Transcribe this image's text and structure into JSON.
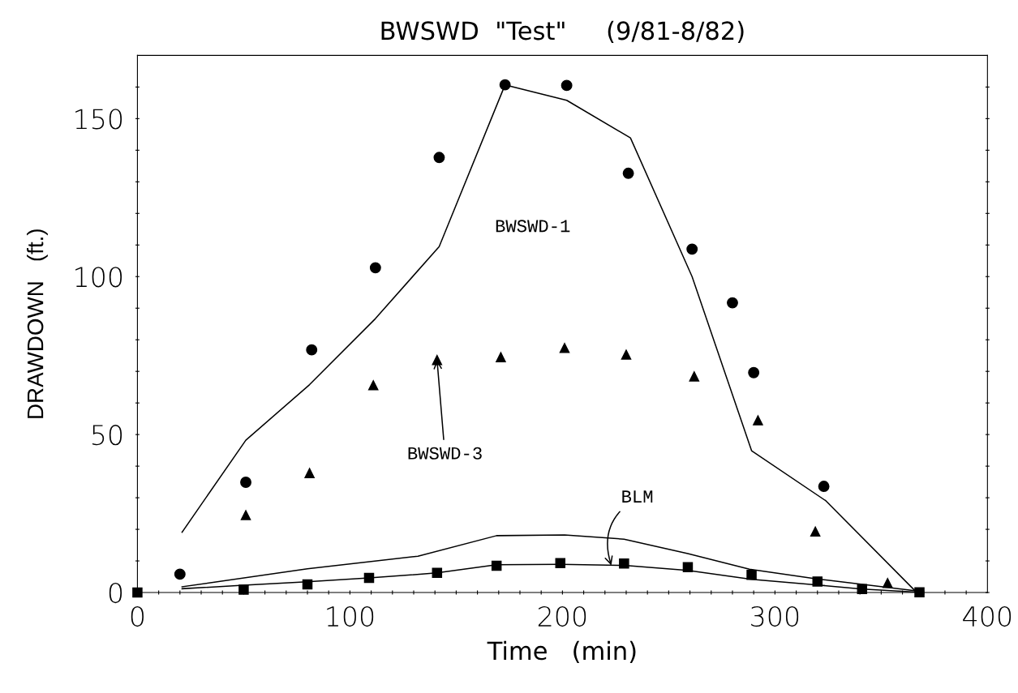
{
  "chart_data": {
    "type": "scatter",
    "title": "BWSWD  \"Test\"     (9/81-8/82)",
    "xlabel": "Time   (min)",
    "ylabel": "DRAWDOWN   (ft.)",
    "xlim": [
      0,
      400
    ],
    "ylim": [
      0,
      170
    ],
    "xticks": [
      0,
      {
        "value": 10,
        "label": null
      },
      {
        "value": 20,
        "label": null
      },
      {
        "value": 30,
        "label": null
      },
      {
        "value": 40,
        "label": null
      },
      {
        "value": 50,
        "label": null
      },
      {
        "value": 60,
        "label": null
      },
      {
        "value": 70,
        "label": null
      },
      {
        "value": 80,
        "label": null
      },
      {
        "value": 90,
        "label": null
      },
      100,
      {
        "value": 110,
        "label": null
      },
      {
        "value": 120,
        "label": null
      },
      {
        "value": 130,
        "label": null
      },
      {
        "value": 140,
        "label": null
      },
      {
        "value": 150,
        "label": null
      },
      {
        "value": 160,
        "label": null
      },
      {
        "value": 170,
        "label": null
      },
      {
        "value": 180,
        "label": null
      },
      {
        "value": 190,
        "label": null
      },
      200,
      {
        "value": 210,
        "label": null
      },
      {
        "value": 220,
        "label": null
      },
      {
        "value": 230,
        "label": null
      },
      {
        "value": 240,
        "label": null
      },
      {
        "value": 250,
        "label": null
      },
      {
        "value": 260,
        "label": null
      },
      {
        "value": 270,
        "label": null
      },
      {
        "value": 280,
        "label": null
      },
      {
        "value": 290,
        "label": null
      },
      300,
      {
        "value": 310,
        "label": null
      },
      {
        "value": 320,
        "label": null
      },
      {
        "value": 330,
        "label": null
      },
      {
        "value": 340,
        "label": null
      },
      {
        "value": 350,
        "label": null
      },
      {
        "value": 360,
        "label": null
      },
      {
        "value": 370,
        "label": null
      },
      {
        "value": 380,
        "label": null
      },
      {
        "value": 390,
        "label": null
      },
      400
    ],
    "yticks": [
      0,
      {
        "value": 10,
        "label": null
      },
      {
        "value": 20,
        "label": null
      },
      {
        "value": 30,
        "label": null
      },
      {
        "value": 40,
        "label": null
      },
      50,
      {
        "value": 60,
        "label": null
      },
      {
        "value": 70,
        "label": null
      },
      {
        "value": 80,
        "label": null
      },
      {
        "value": 90,
        "label": null
      },
      100,
      {
        "value": 110,
        "label": null
      },
      {
        "value": 120,
        "label": null
      },
      {
        "value": 130,
        "label": null
      },
      {
        "value": 140,
        "label": null
      },
      150,
      {
        "value": 160,
        "label": null
      }
    ],
    "grid": false,
    "legend": false,
    "series": [
      {
        "marker": "circle",
        "color": "#000000",
        "x": [
          20,
          51,
          82,
          112,
          142,
          173,
          202,
          231,
          261,
          280,
          290,
          323
        ],
        "values": [
          5.8,
          34.9,
          76.8,
          102.8,
          137.7,
          160.7,
          160.5,
          132.7,
          108.7,
          91.7,
          69.6,
          33.6
        ]
      },
      {
        "marker": "triangle",
        "color": "#000000",
        "x": [
          51,
          81,
          111,
          141,
          171,
          201,
          230,
          262,
          292,
          319,
          353
        ],
        "values": [
          24.5,
          37.8,
          65.6,
          73.6,
          74.5,
          77.4,
          75.3,
          68.4,
          54.5,
          19.3,
          3.0
        ]
      },
      {
        "marker": "square",
        "color": "#000000",
        "x": [
          0,
          50,
          80,
          109,
          141,
          169,
          199,
          229,
          259,
          289,
          320,
          341,
          368
        ],
        "values": [
          0,
          0.9,
          2.6,
          4.6,
          6.2,
          8.5,
          9.3,
          9.2,
          8.0,
          5.6,
          3.5,
          1.1,
          0.1
        ]
      },
      {
        "type": "line",
        "marker": "none",
        "line_style": "solid",
        "color": "#000000",
        "x": [
          21,
          51,
          81,
          112,
          142,
          173,
          202,
          232,
          261,
          289,
          324,
          366
        ],
        "values": [
          19.1,
          48.2,
          65.8,
          86.7,
          109.5,
          160.7,
          155.8,
          143.9,
          100.0,
          44.9,
          29.0,
          0.5
        ]
      },
      {
        "type": "line",
        "marker": "none",
        "line_style": "solid",
        "color": "#000000",
        "x": [
          21,
          80,
          132,
          169,
          201,
          229,
          259,
          288,
          321,
          367
        ],
        "values": [
          1.8,
          7.5,
          11.5,
          18.0,
          18.2,
          16.9,
          12.3,
          7.4,
          4.2,
          0.5
        ]
      },
      {
        "type": "line",
        "marker": "none",
        "line_style": "solid",
        "color": "#000000",
        "x": [
          21,
          50,
          80,
          109,
          141,
          169,
          199,
          229,
          259,
          289,
          320,
          341,
          368
        ],
        "values": [
          1.2,
          2.3,
          3.4,
          4.6,
          6.2,
          8.8,
          8.9,
          8.6,
          7.0,
          4.2,
          2.4,
          1.1,
          0.1
        ]
      }
    ],
    "annotations": [
      "BWSWD-1",
      {
        "text": "BWSWD-3",
        "x": 141,
        "y": 73.6
      },
      {
        "text": "BLM",
        "x": 223,
        "y": 8.6
      }
    ]
  }
}
